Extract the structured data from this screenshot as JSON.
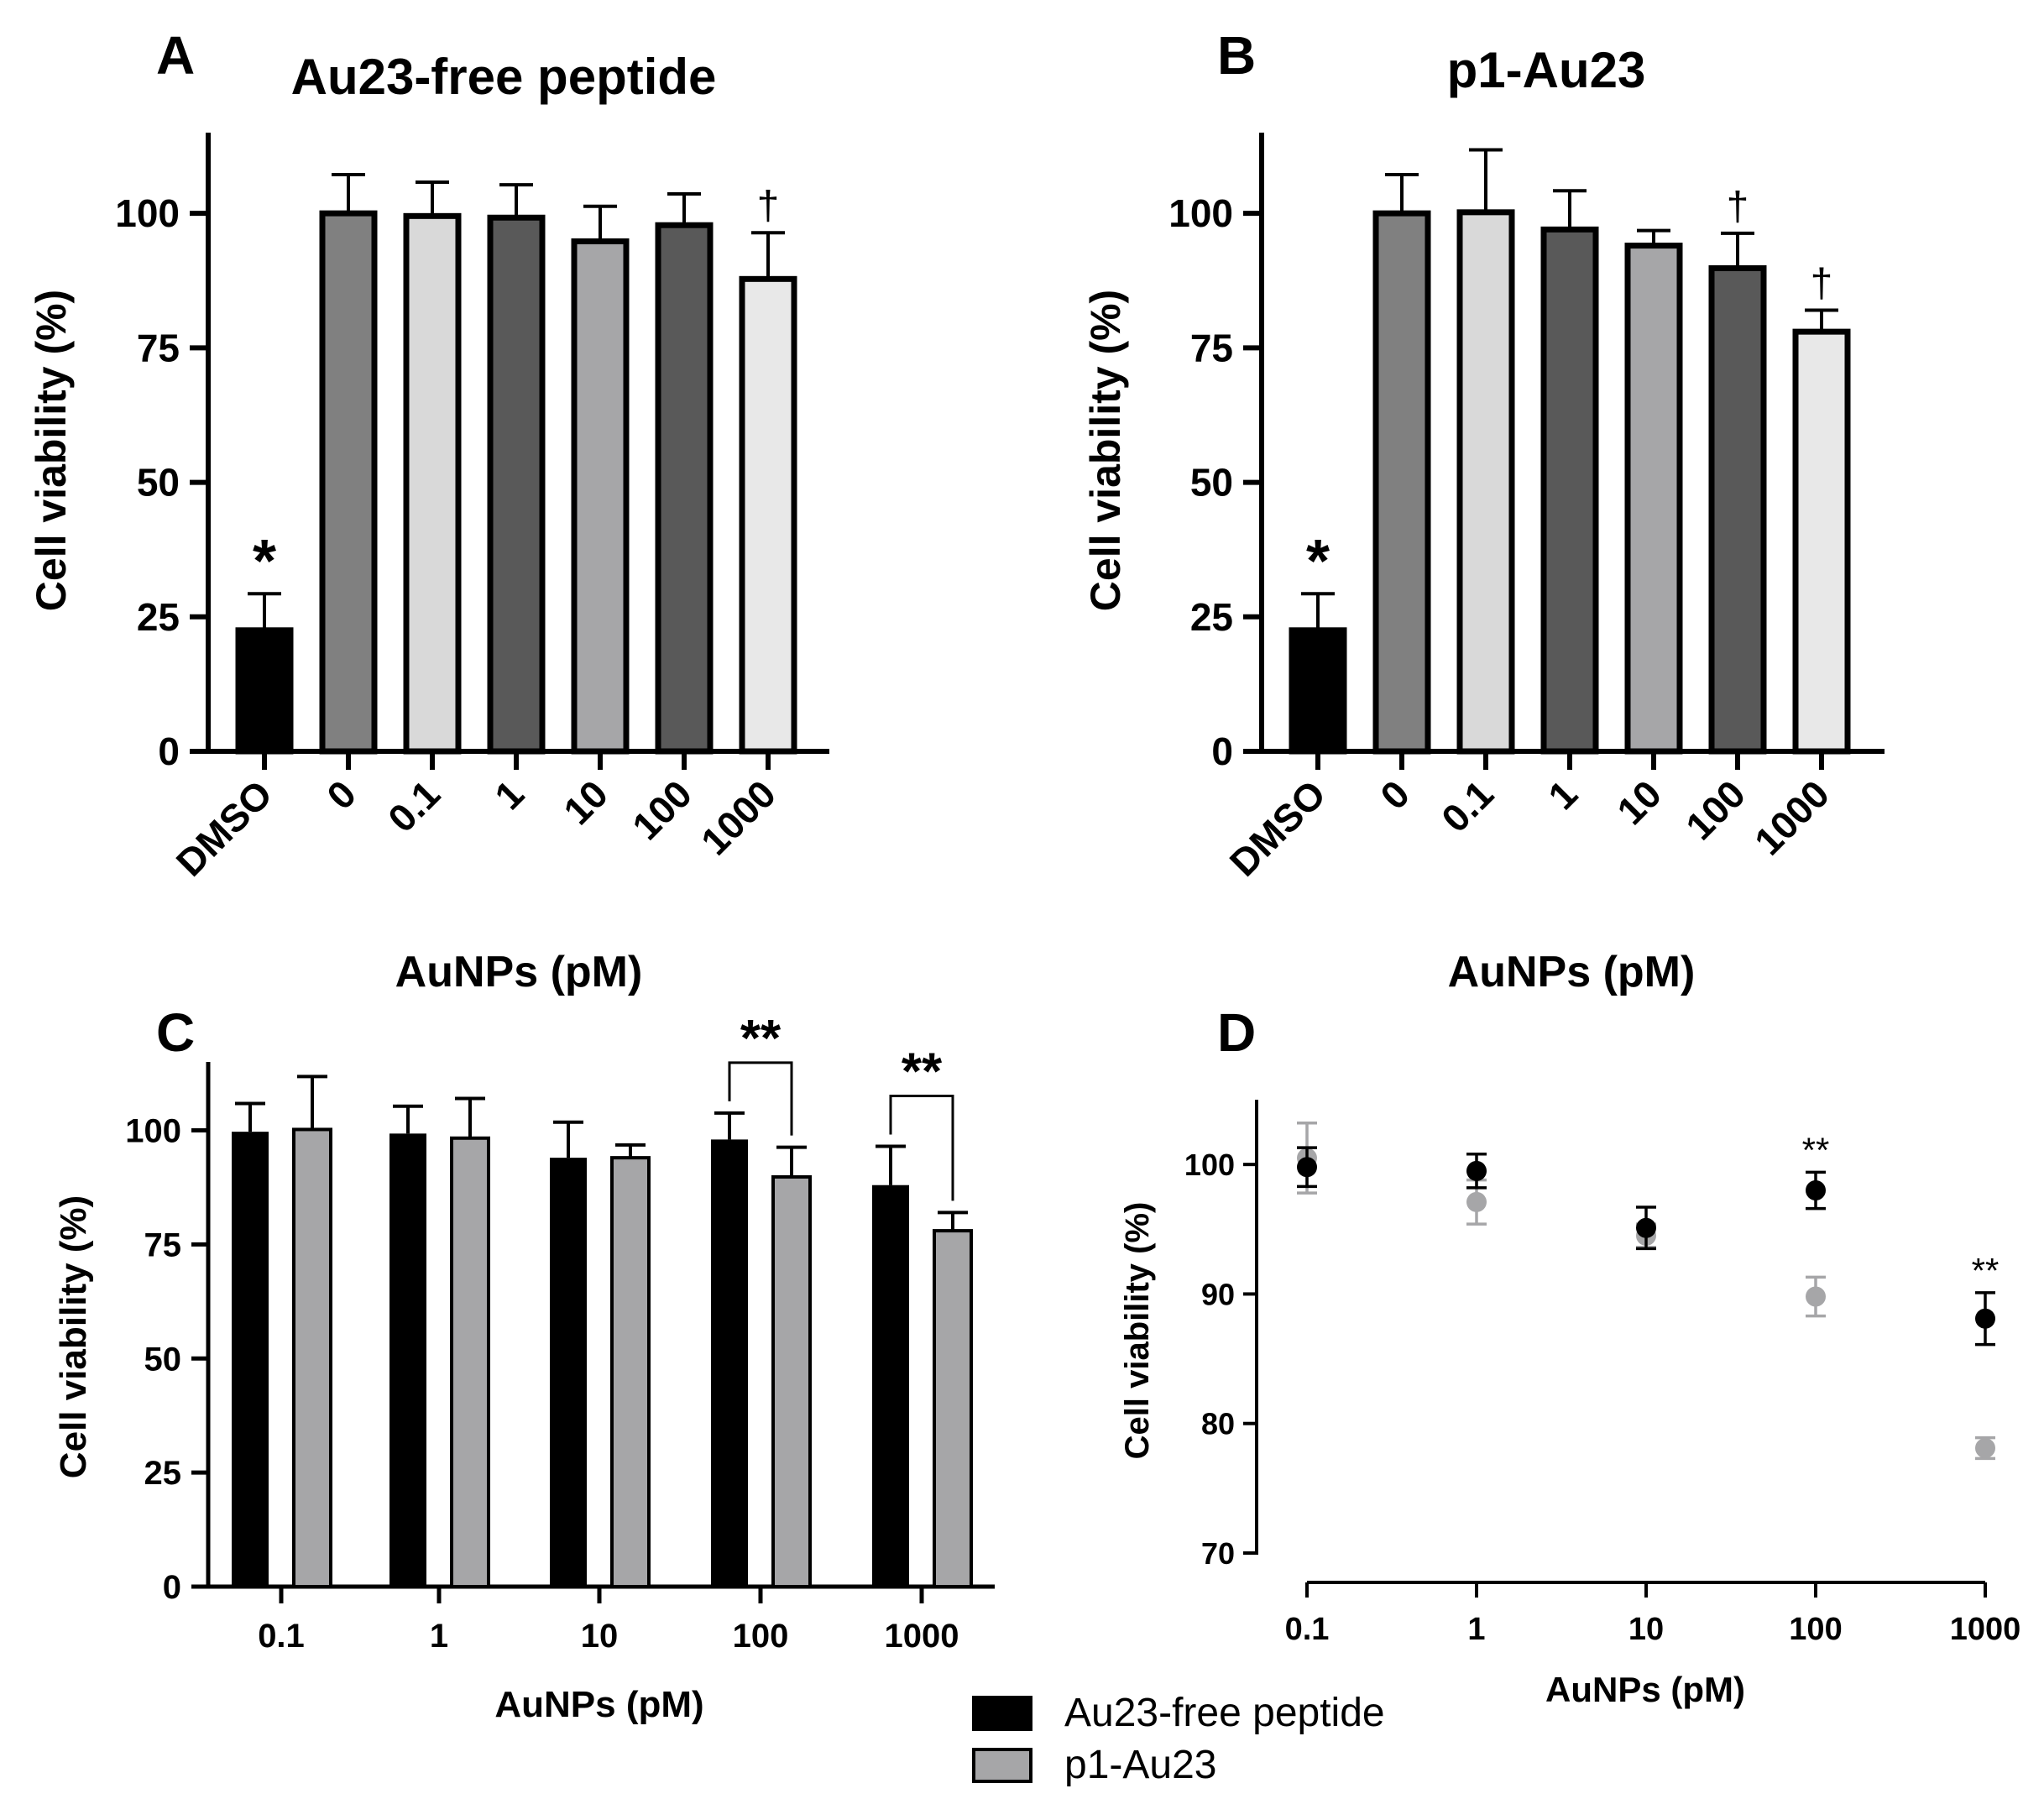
{
  "chart_data": [
    {
      "panel": "A",
      "type": "bar",
      "title": "Au23-free peptide",
      "xlabel": "AuNPs (pM)",
      "ylabel": "Cell viability (%)",
      "ylim": [
        0,
        115
      ],
      "yticks": [
        "0",
        "25",
        "50",
        "75",
        "100"
      ],
      "categories": [
        "DMSO",
        "0",
        "0.1",
        "1",
        "10",
        "100",
        "1000"
      ],
      "values": [
        22.5,
        100,
        99.5,
        99.2,
        94.8,
        97.8,
        87.8
      ],
      "errors": [
        6.8,
        7.2,
        6.3,
        6.1,
        6.5,
        5.8,
        8.6
      ],
      "fills": [
        "#000000",
        "#808080",
        "#d9d9d9",
        "#595959",
        "#a6a6a8",
        "#595959",
        "#e8e8e8"
      ],
      "annotations": [
        "*",
        "",
        "",
        "",
        "",
        "",
        "†"
      ]
    },
    {
      "panel": "B",
      "type": "bar",
      "title": "p1-Au23",
      "xlabel": "AuNPs (pM)",
      "ylabel": "Cell viability (%)",
      "ylim": [
        0,
        115
      ],
      "yticks": [
        "0",
        "25",
        "50",
        "75",
        "100"
      ],
      "categories": [
        "DMSO",
        "0",
        "0.1",
        "1",
        "10",
        "100",
        "1000"
      ],
      "values": [
        22.5,
        100,
        100.2,
        97,
        94,
        89.8,
        78
      ],
      "errors": [
        6.8,
        7.2,
        11.6,
        7.2,
        2.8,
        6.5,
        4
      ],
      "fills": [
        "#000000",
        "#808080",
        "#d9d9d9",
        "#595959",
        "#a6a6a8",
        "#595959",
        "#e8e8e8"
      ],
      "annotations": [
        "*",
        "",
        "",
        "",
        "",
        "†",
        "†"
      ]
    },
    {
      "panel": "C",
      "type": "bar",
      "xlabel": "AuNPs (pM)",
      "ylabel": "Cell viability (%)",
      "ylim": [
        0,
        115
      ],
      "yticks": [
        "0",
        "25",
        "50",
        "75",
        "100"
      ],
      "categories": [
        "0.1",
        "1",
        "10",
        "100",
        "1000"
      ],
      "series": [
        {
          "name": "Au23-free peptide",
          "color": "#000000",
          "values": [
            99.7,
            99.3,
            94,
            98,
            88
          ],
          "errors": [
            6.2,
            6,
            7.8,
            5.8,
            8.5
          ]
        },
        {
          "name": "p1-Au23",
          "color": "#a6a6a8",
          "values": [
            100.2,
            98.3,
            94,
            89.8,
            78
          ],
          "errors": [
            11.6,
            8.7,
            2.8,
            6.5,
            4
          ]
        }
      ],
      "significance": [
        {
          "category": "100",
          "label": "**"
        },
        {
          "category": "1000",
          "label": "**"
        }
      ]
    },
    {
      "panel": "D",
      "type": "scatter",
      "xlabel": "AuNPs (pM)",
      "ylabel": "Cell viability (%)",
      "xscale": "log",
      "ylim": [
        70,
        105
      ],
      "yticks": [
        "70",
        "80",
        "90",
        "100"
      ],
      "x": [
        0.1,
        1,
        10,
        100,
        1000
      ],
      "xticks": [
        "0.1",
        "1",
        "10",
        "100",
        "1000"
      ],
      "series": [
        {
          "name": "p1-Au23",
          "color": "#a6a6a8",
          "values": [
            100.5,
            97.1,
            94.5,
            89.8,
            78.1
          ],
          "errors": [
            2.7,
            1.7,
            0.9,
            1.5,
            0.8
          ]
        },
        {
          "name": "Au23-free peptide",
          "color": "#000000",
          "values": [
            99.8,
            99.5,
            95.1,
            98,
            88.1
          ],
          "errors": [
            1.5,
            1.3,
            1.6,
            1.4,
            2
          ]
        }
      ],
      "significance": [
        {
          "x": 100,
          "label": "**"
        },
        {
          "x": 1000,
          "label": "**"
        }
      ]
    }
  ],
  "legend": [
    {
      "label": "Au23-free peptide",
      "color": "#000000"
    },
    {
      "label": "p1-Au23",
      "color": "#a6a6a8"
    }
  ]
}
